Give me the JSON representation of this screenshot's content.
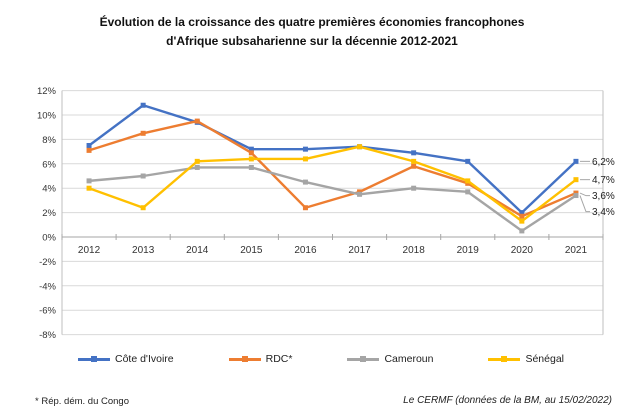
{
  "title": "Évolution de la croissance des quatre premières économies francophones\nd'Afrique subsaharienne sur la décennie 2012-2021",
  "footnotes": {
    "left": "* Rép. dém. du Congo",
    "right": "Le CERMF (données de la BM, au 15/02/2022)"
  },
  "chart_data": {
    "type": "line",
    "title": "Évolution de la croissance des quatre premières économies francophones d'Afrique subsaharienne sur la décennie 2012-2021",
    "categories": [
      "2012",
      "2013",
      "2014",
      "2015",
      "2016",
      "2017",
      "2018",
      "2019",
      "2020",
      "2021"
    ],
    "series": [
      {
        "name": "Côte d'Ivoire",
        "color": "#4472C4",
        "values": [
          7.5,
          10.8,
          9.4,
          7.2,
          7.2,
          7.4,
          6.9,
          6.2,
          2.0,
          6.2
        ],
        "end_label": "6,2%"
      },
      {
        "name": "RDC*",
        "color": "#ED7D31",
        "values": [
          7.1,
          8.5,
          9.5,
          6.9,
          2.4,
          3.7,
          5.8,
          4.4,
          1.7,
          3.6
        ],
        "end_label": "3,6%"
      },
      {
        "name": "Cameroun",
        "color": "#A5A5A5",
        "values": [
          4.6,
          5.0,
          5.7,
          5.7,
          4.5,
          3.5,
          4.0,
          3.7,
          0.5,
          3.4
        ],
        "end_label": "3,4%"
      },
      {
        "name": "Sénégal",
        "color": "#FFC000",
        "values": [
          4.0,
          2.4,
          6.2,
          6.4,
          6.4,
          7.4,
          6.2,
          4.6,
          1.3,
          4.7
        ],
        "end_label": "4,7%"
      }
    ],
    "y_ticks": [
      "12%",
      "10%",
      "8%",
      "6%",
      "4%",
      "2%",
      "0%",
      "-2%",
      "-4%",
      "-6%",
      "-8%"
    ],
    "ylim": [
      -8,
      12
    ],
    "y_step": 2,
    "grid": true,
    "legend_position": "bottom",
    "axis_color": "#a6a6a6",
    "grid_color": "#d9d9d9",
    "border_color": "#bfbfbf",
    "label_color": "#333333"
  }
}
